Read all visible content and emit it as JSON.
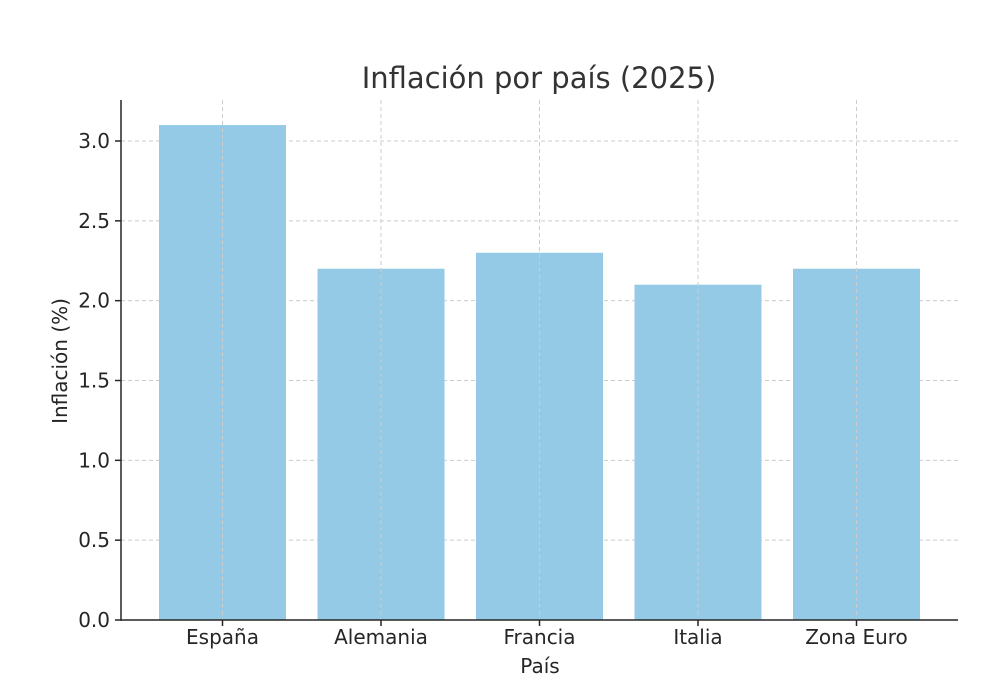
{
  "chart_data": {
    "type": "bar",
    "title": "Inflación por país (2025)",
    "xlabel": "País",
    "ylabel": "Inflación (%)",
    "categories": [
      "España",
      "Alemania",
      "Francia",
      "Italia",
      "Zona Euro"
    ],
    "values": [
      3.1,
      2.2,
      2.3,
      2.1,
      2.2
    ],
    "ylim": [
      0,
      3.25
    ],
    "yticks": [
      "0.0",
      "0.5",
      "1.0",
      "1.5",
      "2.0",
      "2.5",
      "3.0"
    ],
    "grid": true,
    "legend": null,
    "colors": {
      "bar": "#95cae7",
      "grid": "#cccccc",
      "axis": "#262626",
      "text": "#262626"
    }
  }
}
